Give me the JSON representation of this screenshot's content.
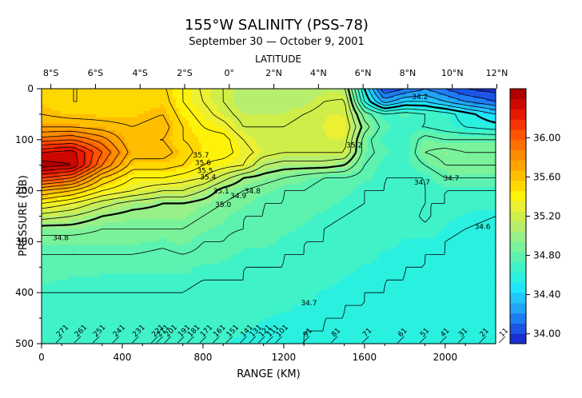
{
  "chart_data": {
    "type": "heatmap",
    "title": "155°W SALINITY (PSS-78)",
    "subtitle": "September 30 — October 9, 2001",
    "top_axis_label": "LATITUDE",
    "xlabel": "RANGE (KM)",
    "ylabel": "PRESSURE (DB)",
    "xlim": [
      0,
      2250
    ],
    "ylim": [
      500,
      0
    ],
    "x_ticks": [
      "0",
      "400",
      "800",
      "1200",
      "1600",
      "2000"
    ],
    "x_tick_values": [
      0,
      400,
      800,
      1200,
      1600,
      2000
    ],
    "y_ticks": [
      "0",
      "100",
      "200",
      "300",
      "400",
      "500"
    ],
    "y_tick_values": [
      0,
      100,
      200,
      300,
      400,
      500
    ],
    "lat_ticks": [
      "8°S",
      "6°S",
      "4°S",
      "2°S",
      "0°",
      "2°N",
      "4°N",
      "6°N",
      "8°N",
      "10°N",
      "12°N"
    ],
    "lat_tick_ranges": [
      46,
      267,
      488,
      709,
      930,
      1151,
      1372,
      1593,
      1814,
      2035,
      2256
    ],
    "colorbar": {
      "ticks": [
        "34.00",
        "34.40",
        "34.80",
        "35.20",
        "35.60",
        "36.00"
      ],
      "tick_values": [
        34.0,
        34.4,
        34.8,
        35.2,
        35.6,
        36.0
      ],
      "min": 33.9,
      "max": 36.5,
      "colors": [
        "#1a2fd0",
        "#1c55e6",
        "#1f7df2",
        "#22a6f7",
        "#22c6fb",
        "#1fe6fb",
        "#2af0e0",
        "#40f2c8",
        "#5cf2b0",
        "#7af29a",
        "#98f088",
        "#b6ee6e",
        "#d0ee4a",
        "#ecf032",
        "#fff20a",
        "#ffd800",
        "#ffbe00",
        "#ffa400",
        "#ff8c00",
        "#ff7000",
        "#ff5400",
        "#f73400",
        "#e61800",
        "#cc0800",
        "#b00000"
      ]
    },
    "salinity": {
      "x": [
        0,
        150,
        300,
        450,
        600,
        700,
        800,
        900,
        1000,
        1100,
        1200,
        1300,
        1400,
        1500,
        1600,
        1700,
        1800,
        1900,
        2000,
        2100,
        2250
      ],
      "pressure": [
        0,
        25,
        50,
        75,
        100,
        125,
        150,
        175,
        200,
        225,
        250,
        275,
        300,
        325,
        350,
        375,
        400,
        425,
        450,
        475,
        500
      ],
      "values": [
        [
          35.52,
          35.5,
          35.5,
          35.5,
          35.52,
          35.4,
          35.28,
          35.2,
          35.1,
          35.1,
          35.1,
          35.1,
          35.12,
          35.12,
          34.5,
          34.0,
          34.1,
          34.2,
          34.1,
          34.0,
          33.95
        ],
        [
          35.55,
          35.5,
          35.5,
          35.52,
          35.55,
          35.4,
          35.3,
          35.2,
          35.1,
          35.1,
          35.1,
          35.12,
          35.2,
          35.22,
          34.6,
          34.25,
          34.4,
          34.4,
          34.3,
          34.2,
          34.1
        ],
        [
          35.6,
          35.55,
          35.55,
          35.55,
          35.6,
          35.45,
          35.35,
          35.25,
          35.15,
          35.15,
          35.15,
          35.2,
          35.25,
          35.25,
          34.85,
          34.7,
          34.75,
          34.7,
          34.65,
          34.55,
          34.4
        ],
        [
          35.7,
          35.7,
          35.65,
          35.6,
          35.65,
          35.5,
          35.4,
          35.35,
          35.2,
          35.2,
          35.2,
          35.25,
          35.25,
          35.3,
          34.95,
          34.75,
          34.7,
          34.7,
          34.65,
          34.6,
          34.55
        ],
        [
          35.95,
          36.0,
          35.85,
          35.6,
          35.6,
          35.5,
          35.45,
          35.45,
          35.3,
          35.2,
          35.2,
          35.2,
          35.25,
          35.25,
          34.85,
          34.7,
          34.7,
          34.85,
          34.8,
          34.8,
          34.8
        ],
        [
          36.3,
          36.35,
          36.0,
          35.65,
          35.65,
          35.55,
          35.45,
          35.45,
          35.35,
          35.25,
          35.2,
          35.2,
          35.2,
          35.2,
          34.85,
          34.75,
          34.7,
          34.9,
          34.95,
          34.9,
          34.9
        ],
        [
          36.45,
          36.4,
          35.9,
          35.55,
          35.55,
          35.5,
          35.4,
          35.35,
          35.3,
          35.1,
          35.05,
          35.05,
          35.05,
          35.0,
          34.8,
          34.7,
          34.7,
          34.8,
          34.9,
          34.9,
          34.9
        ],
        [
          36.1,
          36.0,
          35.6,
          35.4,
          35.4,
          35.35,
          35.3,
          35.15,
          35.0,
          34.95,
          34.9,
          34.85,
          34.8,
          34.8,
          34.75,
          34.7,
          34.7,
          34.7,
          34.8,
          34.8,
          34.8
        ],
        [
          35.7,
          35.6,
          35.4,
          35.3,
          35.2,
          35.2,
          35.1,
          34.95,
          34.9,
          34.85,
          34.8,
          34.8,
          34.75,
          34.75,
          34.7,
          34.7,
          34.65,
          34.7,
          34.7,
          34.7,
          34.7
        ],
        [
          35.4,
          35.3,
          35.15,
          35.05,
          35.0,
          35.0,
          34.95,
          34.9,
          34.85,
          34.8,
          34.8,
          34.75,
          34.75,
          34.72,
          34.7,
          34.65,
          34.65,
          34.7,
          34.7,
          34.65,
          34.65
        ],
        [
          35.15,
          35.1,
          35.0,
          34.95,
          34.95,
          34.95,
          34.9,
          34.85,
          34.8,
          34.8,
          34.75,
          34.75,
          34.72,
          34.7,
          34.68,
          34.65,
          34.65,
          34.72,
          34.65,
          34.62,
          34.6
        ],
        [
          34.95,
          34.95,
          34.9,
          34.9,
          34.9,
          34.9,
          34.85,
          34.82,
          34.8,
          34.75,
          34.75,
          34.72,
          34.7,
          34.68,
          34.65,
          34.65,
          34.65,
          34.68,
          34.62,
          34.6,
          34.58
        ],
        [
          34.85,
          34.85,
          34.85,
          34.85,
          34.82,
          34.85,
          34.8,
          34.8,
          34.75,
          34.75,
          34.72,
          34.7,
          34.7,
          34.68,
          34.65,
          34.65,
          34.62,
          34.62,
          34.6,
          34.58,
          34.58
        ],
        [
          34.8,
          34.8,
          34.8,
          34.8,
          34.78,
          34.8,
          34.78,
          34.75,
          34.72,
          34.72,
          34.7,
          34.7,
          34.68,
          34.65,
          34.65,
          34.62,
          34.62,
          34.6,
          34.6,
          34.58,
          34.58
        ],
        [
          34.78,
          34.78,
          34.75,
          34.75,
          34.75,
          34.75,
          34.72,
          34.72,
          34.7,
          34.7,
          34.7,
          34.68,
          34.65,
          34.65,
          34.62,
          34.62,
          34.6,
          34.6,
          34.58,
          34.58,
          34.56
        ],
        [
          34.75,
          34.72,
          34.72,
          34.72,
          34.72,
          34.72,
          34.7,
          34.7,
          34.7,
          34.68,
          34.68,
          34.65,
          34.65,
          34.62,
          34.62,
          34.6,
          34.6,
          34.58,
          34.58,
          34.56,
          34.56
        ],
        [
          34.7,
          34.7,
          34.7,
          34.7,
          34.7,
          34.7,
          34.68,
          34.68,
          34.66,
          34.66,
          34.65,
          34.65,
          34.62,
          34.62,
          34.6,
          34.6,
          34.58,
          34.58,
          34.56,
          34.56,
          34.55
        ],
        [
          34.68,
          34.68,
          34.68,
          34.68,
          34.68,
          34.68,
          34.66,
          34.66,
          34.65,
          34.65,
          34.64,
          34.62,
          34.62,
          34.6,
          34.6,
          34.58,
          34.58,
          34.56,
          34.56,
          34.55,
          34.55
        ],
        [
          34.66,
          34.66,
          34.66,
          34.66,
          34.66,
          34.66,
          34.65,
          34.65,
          34.64,
          34.63,
          34.62,
          34.62,
          34.6,
          34.6,
          34.58,
          34.58,
          34.56,
          34.56,
          34.55,
          34.55,
          34.54
        ],
        [
          34.65,
          34.65,
          34.65,
          34.65,
          34.65,
          34.65,
          34.64,
          34.64,
          34.63,
          34.62,
          34.62,
          34.6,
          34.6,
          34.58,
          34.58,
          34.56,
          34.56,
          34.55,
          34.55,
          34.54,
          34.54
        ],
        [
          34.64,
          34.64,
          34.64,
          34.64,
          34.64,
          34.64,
          34.63,
          34.63,
          34.62,
          34.62,
          34.6,
          34.6,
          34.58,
          34.58,
          34.56,
          34.56,
          34.55,
          34.55,
          34.54,
          34.54,
          34.53
        ]
      ]
    },
    "contour_labels": [
      {
        "text": "34.8",
        "x": 95,
        "p": 297
      },
      {
        "text": "35.7",
        "x": 790,
        "p": 135
      },
      {
        "text": "35.6",
        "x": 800,
        "p": 150
      },
      {
        "text": "35.5",
        "x": 810,
        "p": 165
      },
      {
        "text": "35.4",
        "x": 825,
        "p": 178
      },
      {
        "text": "35.1",
        "x": 890,
        "p": 205
      },
      {
        "text": "35.0",
        "x": 900,
        "p": 232
      },
      {
        "text": "34.9",
        "x": 975,
        "p": 215
      },
      {
        "text": "34.8",
        "x": 1045,
        "p": 205
      },
      {
        "text": "34.7",
        "x": 1325,
        "p": 425
      },
      {
        "text": "35.2",
        "x": 1550,
        "p": 115
      },
      {
        "text": "34.7",
        "x": 1885,
        "p": 188
      },
      {
        "text": "34.7",
        "x": 2030,
        "p": 180
      },
      {
        "text": "34.6",
        "x": 2185,
        "p": 275
      },
      {
        "text": "34.2",
        "x": 1875,
        "p": 20
      }
    ],
    "station_labels": [
      "271",
      "261",
      "251",
      "241",
      "231",
      "221",
      "211",
      "201",
      "191",
      "181",
      "171",
      "161",
      "151",
      "141",
      "131",
      "121",
      "111",
      "101",
      "91",
      "81",
      "71",
      "61",
      "51",
      "41",
      "31",
      "21",
      "11"
    ],
    "station_ranges": [
      87,
      178,
      270,
      368,
      465,
      560,
      585,
      625,
      690,
      738,
      800,
      865,
      930,
      1000,
      1045,
      1090,
      1130,
      1175,
      1310,
      1450,
      1605,
      1780,
      1890,
      1990,
      2080,
      2185,
      2285
    ]
  }
}
